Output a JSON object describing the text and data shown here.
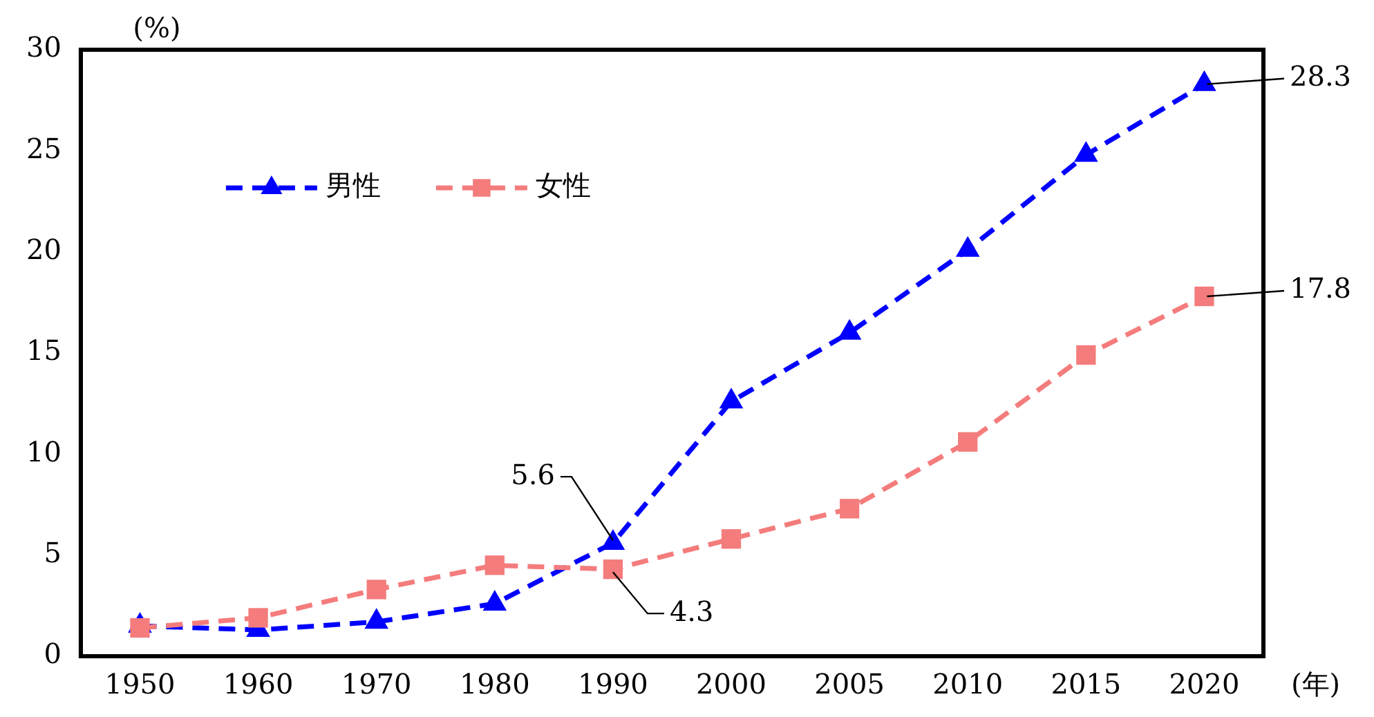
{
  "chart_data": {
    "type": "line",
    "ylabel": "(%)",
    "xlabel": "(年)",
    "categories": [
      "1950",
      "1960",
      "1970",
      "1980",
      "1990",
      "2000",
      "2005",
      "2010",
      "2015",
      "2020"
    ],
    "series": [
      {
        "name": "男性",
        "color": "#0000ff",
        "marker": "triangle",
        "line_style": "dashed",
        "values": [
          1.5,
          1.3,
          1.7,
          2.6,
          5.6,
          12.6,
          16.0,
          20.1,
          24.8,
          28.3
        ]
      },
      {
        "name": "女性",
        "color": "#f47c7c",
        "marker": "square",
        "line_style": "dashed",
        "values": [
          1.4,
          1.9,
          3.3,
          4.5,
          4.3,
          5.8,
          7.3,
          10.6,
          14.9,
          17.8
        ]
      }
    ],
    "ylim": [
      0,
      30
    ],
    "yticks": [
      0,
      5,
      10,
      15,
      20,
      25,
      30
    ],
    "grid": false,
    "legend": "top left",
    "annotations": [
      {
        "text": "5.6",
        "x": "1990",
        "y": 5.6
      },
      {
        "text": "4.3",
        "x": "1990",
        "y": 4.3
      },
      {
        "text": "28.3",
        "x": "2020",
        "y": 28.3
      },
      {
        "text": "17.8",
        "x": "2020",
        "y": 17.8
      }
    ]
  }
}
